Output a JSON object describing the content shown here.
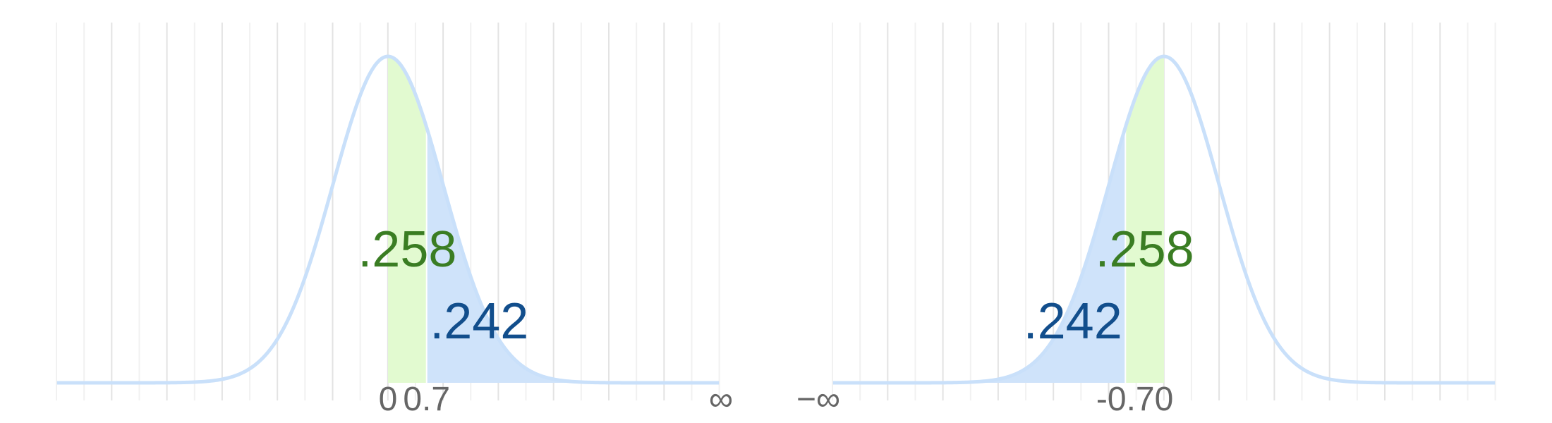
{
  "colors": {
    "curve": "#c9e0fa",
    "tail_fill": "#cfe3fa",
    "middle_fill": "#e2fad0",
    "green_text": "#3a7d23",
    "blue_text": "#124e8c",
    "tick_text": "#666666",
    "grid_major": "#e3e3e3",
    "grid_minor": "#f1f1f1"
  },
  "chart_data": [
    {
      "type": "area",
      "distribution": "standard normal",
      "xlim": [
        -6,
        6
      ],
      "shaded_regions": [
        {
          "from": 0,
          "to": 0.7,
          "value": ".258",
          "color": "middle_fill",
          "label_color": "green_text"
        },
        {
          "from": 0.7,
          "to": "∞",
          "value": ".242",
          "color": "tail_fill",
          "label_color": "blue_text"
        }
      ],
      "tick_labels": [
        {
          "x": 0,
          "label": "0"
        },
        {
          "x": 0.7,
          "label": "0.7"
        },
        {
          "x": 6,
          "label": "∞"
        }
      ]
    },
    {
      "type": "area",
      "distribution": "standard normal",
      "xlim": [
        -6,
        6
      ],
      "shaded_regions": [
        {
          "from": "−∞",
          "to": -0.7,
          "value": ".242",
          "color": "tail_fill",
          "label_color": "blue_text"
        },
        {
          "from": -0.7,
          "to": 0,
          "value": ".258",
          "color": "middle_fill",
          "label_color": "green_text"
        }
      ],
      "tick_labels": [
        {
          "x": -6,
          "label": "−∞"
        },
        {
          "x": -0.7,
          "label": "-0.7"
        },
        {
          "x": 0,
          "label": "0"
        }
      ]
    }
  ]
}
